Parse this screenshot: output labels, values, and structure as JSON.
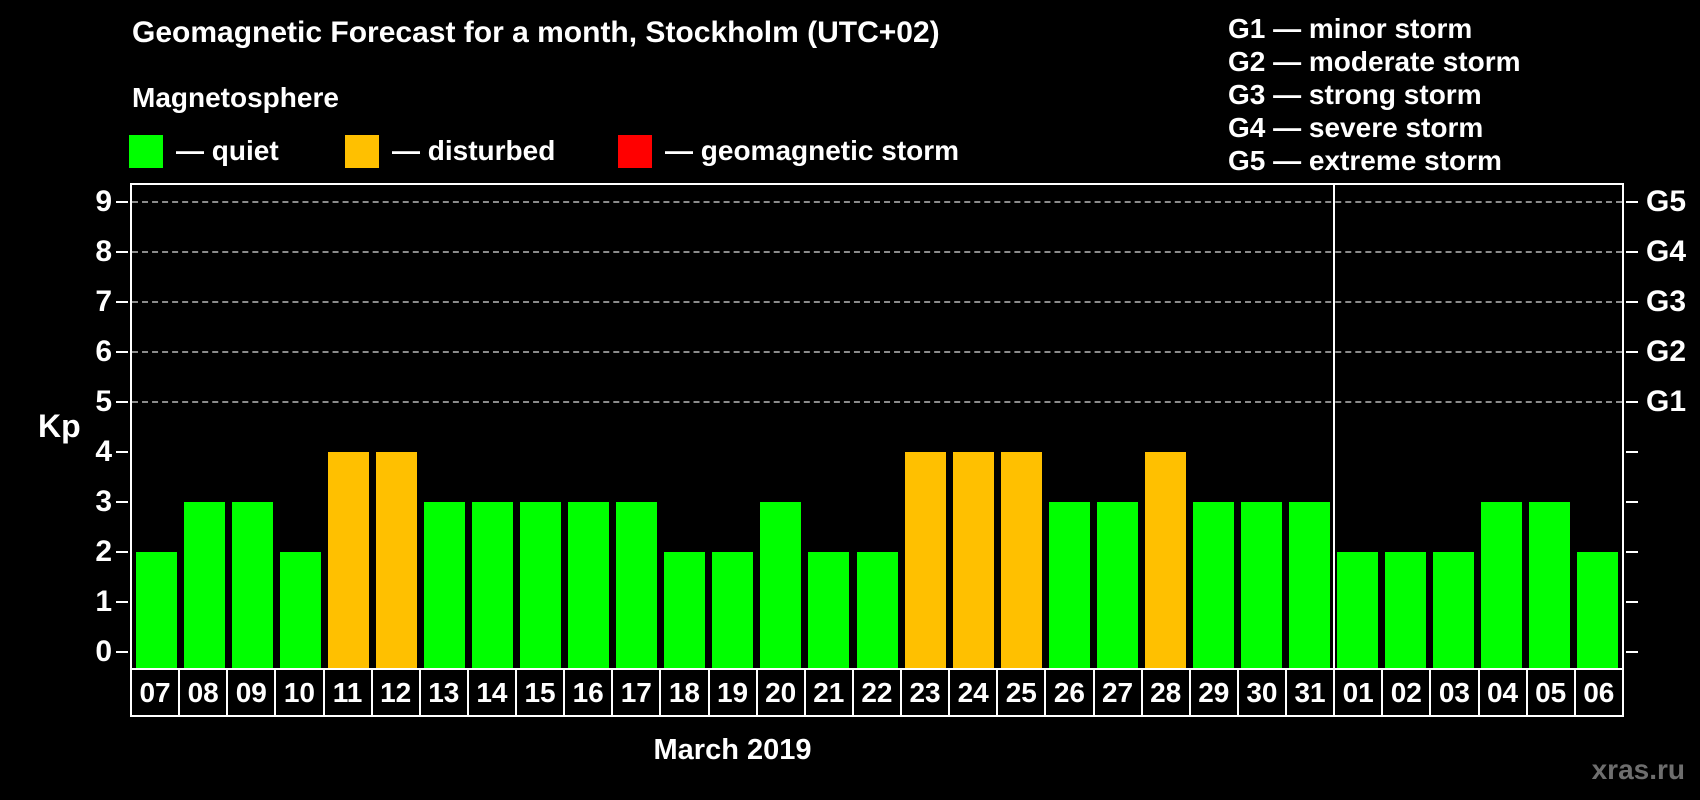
{
  "header": {
    "title": "Geomagnetic Forecast for a month, Stockholm (UTC+02)",
    "subtitle": "Magnetosphere"
  },
  "legend": {
    "items": [
      {
        "label": "— quiet",
        "status": "quiet",
        "color": "#00ff00"
      },
      {
        "label": "— disturbed",
        "status": "disturbed",
        "color": "#ffc000"
      },
      {
        "label": "— geomagnetic storm",
        "status": "storm",
        "color": "#ff0000"
      }
    ]
  },
  "g_legend": {
    "items": [
      "G1 — minor storm",
      "G2 — moderate storm",
      "G3 — strong storm",
      "G4 — severe storm",
      "G5 — extreme storm"
    ]
  },
  "colors": {
    "quiet": "#00ff00",
    "disturbed": "#ffc000",
    "storm": "#ff0000",
    "grid": "#8c8c8c",
    "axis": "#ffffff",
    "background": "#000000"
  },
  "watermark": "xras.ru",
  "chart_data": {
    "type": "bar",
    "title": "Geomagnetic Forecast for a month, Stockholm (UTC+02)",
    "xlabel": "March 2019",
    "ylabel": "Kp",
    "ylim": [
      0,
      9
    ],
    "grid": "horizontal dashed lines at Kp 5–9 (G1–G5 levels)",
    "legend_position": "top",
    "y_ticks": [
      0,
      1,
      2,
      3,
      4,
      5,
      6,
      7,
      8,
      9
    ],
    "right_axis": [
      {
        "label": "G1",
        "kp": 5
      },
      {
        "label": "G2",
        "kp": 6
      },
      {
        "label": "G3",
        "kp": 7
      },
      {
        "label": "G4",
        "kp": 8
      },
      {
        "label": "G5",
        "kp": 9
      }
    ],
    "categories": [
      "07",
      "08",
      "09",
      "10",
      "11",
      "12",
      "13",
      "14",
      "15",
      "16",
      "17",
      "18",
      "19",
      "20",
      "21",
      "22",
      "23",
      "24",
      "25",
      "26",
      "27",
      "28",
      "29",
      "30",
      "31",
      "01",
      "02",
      "03",
      "04",
      "05",
      "06"
    ],
    "values": [
      2,
      3,
      3,
      2,
      4,
      4,
      3,
      3,
      3,
      3,
      3,
      2,
      2,
      3,
      2,
      2,
      4,
      4,
      4,
      3,
      3,
      4,
      3,
      3,
      3,
      2,
      2,
      2,
      3,
      3,
      2
    ],
    "statuses": [
      "quiet",
      "quiet",
      "quiet",
      "quiet",
      "disturbed",
      "disturbed",
      "quiet",
      "quiet",
      "quiet",
      "quiet",
      "quiet",
      "quiet",
      "quiet",
      "quiet",
      "quiet",
      "quiet",
      "disturbed",
      "disturbed",
      "disturbed",
      "quiet",
      "quiet",
      "disturbed",
      "quiet",
      "quiet",
      "quiet",
      "quiet",
      "quiet",
      "quiet",
      "quiet",
      "quiet",
      "quiet"
    ],
    "month_separator_after_index": 24
  }
}
